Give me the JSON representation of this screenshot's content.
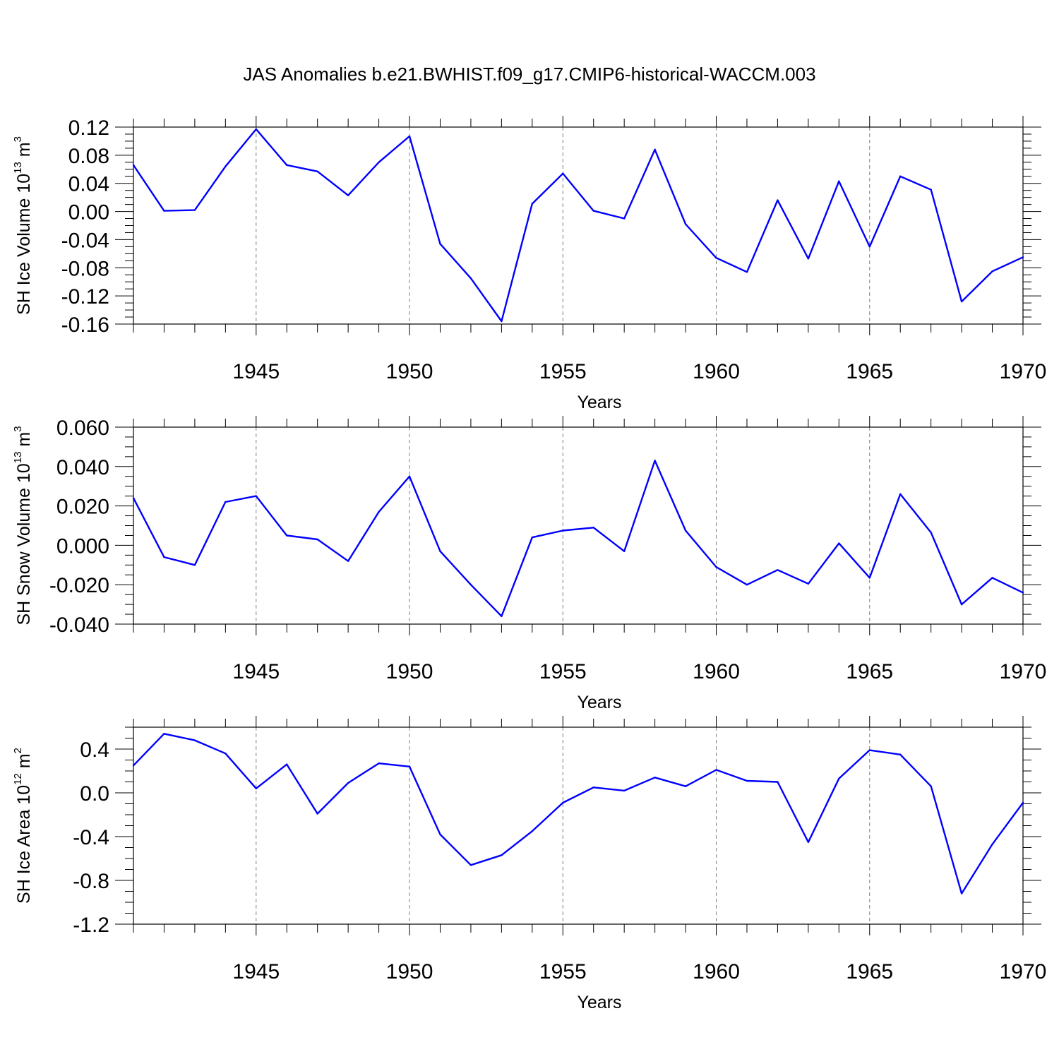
{
  "title": "JAS Anomalies b.e21.BWHIST.f09_g17.CMIP6-historical-WACCM.003",
  "colors": {
    "line": "#0000ff",
    "axis": "#000000",
    "grid": "#808080"
  },
  "chart_data": [
    {
      "type": "line",
      "ylabel": {
        "text": "SH Ice Volume 10",
        "sup": "13",
        "unit": " m",
        "unit_sup": "3"
      },
      "xlabel": "Years",
      "xlim": [
        1941,
        1970
      ],
      "ylim": [
        -0.16,
        0.12
      ],
      "yticks": [
        "0.12",
        "0.08",
        "0.04",
        "0.00",
        "-0.04",
        "-0.08",
        "-0.12",
        "-0.16"
      ],
      "ytick_values": [
        0.12,
        0.08,
        0.04,
        0.0,
        -0.04,
        -0.08,
        -0.12,
        -0.16
      ],
      "xticks": [
        "1945",
        "1950",
        "1955",
        "1960",
        "1965",
        "1970"
      ],
      "xtick_values": [
        1945,
        1950,
        1955,
        1960,
        1965,
        1970
      ],
      "grid": "vertical dashed at labeled years",
      "x": [
        1941,
        1942,
        1943,
        1944,
        1945,
        1946,
        1947,
        1948,
        1949,
        1950,
        1951,
        1952,
        1953,
        1954,
        1955,
        1956,
        1957,
        1958,
        1959,
        1960,
        1961,
        1962,
        1963,
        1964,
        1965,
        1966,
        1967,
        1968,
        1969,
        1970
      ],
      "values": [
        0.066,
        0.001,
        0.002,
        0.064,
        0.117,
        0.066,
        0.057,
        0.023,
        0.07,
        0.107,
        -0.046,
        -0.095,
        -0.156,
        0.011,
        0.054,
        0.001,
        -0.01,
        0.088,
        -0.018,
        -0.066,
        -0.086,
        0.016,
        -0.067,
        0.043,
        -0.05,
        0.05,
        0.031,
        -0.128,
        -0.085,
        -0.065
      ]
    },
    {
      "type": "line",
      "ylabel": {
        "text": "SH Snow Volume 10",
        "sup": "13",
        "unit": " m",
        "unit_sup": "3"
      },
      "xlabel": "Years",
      "xlim": [
        1941,
        1970
      ],
      "ylim": [
        -0.04,
        0.06
      ],
      "yticks": [
        "0.060",
        "0.040",
        "0.020",
        "0.000",
        "-0.020",
        "-0.040"
      ],
      "ytick_values": [
        0.06,
        0.04,
        0.02,
        0.0,
        -0.02,
        -0.04
      ],
      "xticks": [
        "1945",
        "1950",
        "1955",
        "1960",
        "1965",
        "1970"
      ],
      "xtick_values": [
        1945,
        1950,
        1955,
        1960,
        1965,
        1970
      ],
      "grid": "vertical dashed at labeled years",
      "x": [
        1941,
        1942,
        1943,
        1944,
        1945,
        1946,
        1947,
        1948,
        1949,
        1950,
        1951,
        1952,
        1953,
        1954,
        1955,
        1956,
        1957,
        1958,
        1959,
        1960,
        1961,
        1962,
        1963,
        1964,
        1965,
        1966,
        1967,
        1968,
        1969,
        1970
      ],
      "values": [
        0.024,
        -0.006,
        -0.01,
        0.022,
        0.025,
        0.005,
        0.003,
        -0.008,
        0.017,
        0.035,
        -0.003,
        -0.02,
        -0.036,
        0.004,
        0.0075,
        0.009,
        -0.003,
        0.043,
        0.0075,
        -0.011,
        -0.02,
        -0.0125,
        -0.0195,
        0.001,
        -0.0165,
        0.026,
        0.0065,
        -0.03,
        -0.0165,
        -0.024
      ]
    },
    {
      "type": "line",
      "ylabel": {
        "text": "SH Ice Area 10",
        "sup": "12",
        "unit": " m",
        "unit_sup": "2"
      },
      "xlabel": "Years",
      "xlim": [
        1941,
        1970
      ],
      "ylim": [
        -1.2,
        0.6
      ],
      "yticks": [
        "0.4",
        "0.0",
        "-0.4",
        "-0.8",
        "-1.2"
      ],
      "ytick_values": [
        0.4,
        0.0,
        -0.4,
        -0.8,
        -1.2
      ],
      "xticks": [
        "1945",
        "1950",
        "1955",
        "1960",
        "1965",
        "1970"
      ],
      "xtick_values": [
        1945,
        1950,
        1955,
        1960,
        1965,
        1970
      ],
      "grid": "vertical dashed at labeled years",
      "x": [
        1941,
        1942,
        1943,
        1944,
        1945,
        1946,
        1947,
        1948,
        1949,
        1950,
        1951,
        1952,
        1953,
        1954,
        1955,
        1956,
        1957,
        1958,
        1959,
        1960,
        1961,
        1962,
        1963,
        1964,
        1965,
        1966,
        1967,
        1968,
        1969,
        1970
      ],
      "values": [
        0.25,
        0.54,
        0.48,
        0.36,
        0.04,
        0.26,
        -0.19,
        0.09,
        0.27,
        0.24,
        -0.38,
        -0.66,
        -0.57,
        -0.35,
        -0.09,
        0.05,
        0.02,
        0.14,
        0.06,
        0.21,
        0.11,
        0.1,
        -0.45,
        0.13,
        0.39,
        0.35,
        0.06,
        -0.92,
        -0.47,
        -0.09
      ]
    }
  ]
}
